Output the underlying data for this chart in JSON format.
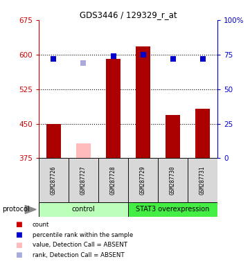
{
  "title": "GDS3446 / 129329_r_at",
  "samples": [
    "GSM287726",
    "GSM287727",
    "GSM287728",
    "GSM287729",
    "GSM287730",
    "GSM287731"
  ],
  "bar_values": [
    449,
    null,
    591,
    617,
    469,
    483
  ],
  "absent_bar_values": [
    null,
    408,
    null,
    null,
    null,
    null
  ],
  "absent_bar_color": "#ffbbbb",
  "dot_values": [
    591,
    null,
    596,
    600,
    591,
    591
  ],
  "absent_dot_values": [
    null,
    582,
    null,
    null,
    null,
    null
  ],
  "absent_dot_color": "#aaaadd",
  "ylim_left": [
    375,
    675
  ],
  "ylim_right": [
    0,
    100
  ],
  "yticks_left": [
    375,
    450,
    525,
    600,
    675
  ],
  "yticks_right": [
    0,
    25,
    50,
    75,
    100
  ],
  "left_axis_color": "#cc0000",
  "right_axis_color": "#0000cc",
  "dot_color": "#0000cc",
  "bar_color": "#aa0000",
  "gridline_y": [
    450,
    525,
    600
  ],
  "protocol_groups": [
    {
      "label": "control",
      "start": 0,
      "end": 2,
      "color": "#bbffbb"
    },
    {
      "label": "STAT3 overexpression",
      "start": 3,
      "end": 5,
      "color": "#44ee44"
    }
  ],
  "protocol_label": "protocol",
  "legend_colors": [
    "#cc0000",
    "#0000cc",
    "#ffbbbb",
    "#aaaadd"
  ],
  "legend_labels": [
    "count",
    "percentile rank within the sample",
    "value, Detection Call = ABSENT",
    "rank, Detection Call = ABSENT"
  ],
  "bar_width": 0.5,
  "base_value": 375,
  "dot_size": 40,
  "figsize": [
    3.61,
    3.84
  ],
  "dpi": 100
}
